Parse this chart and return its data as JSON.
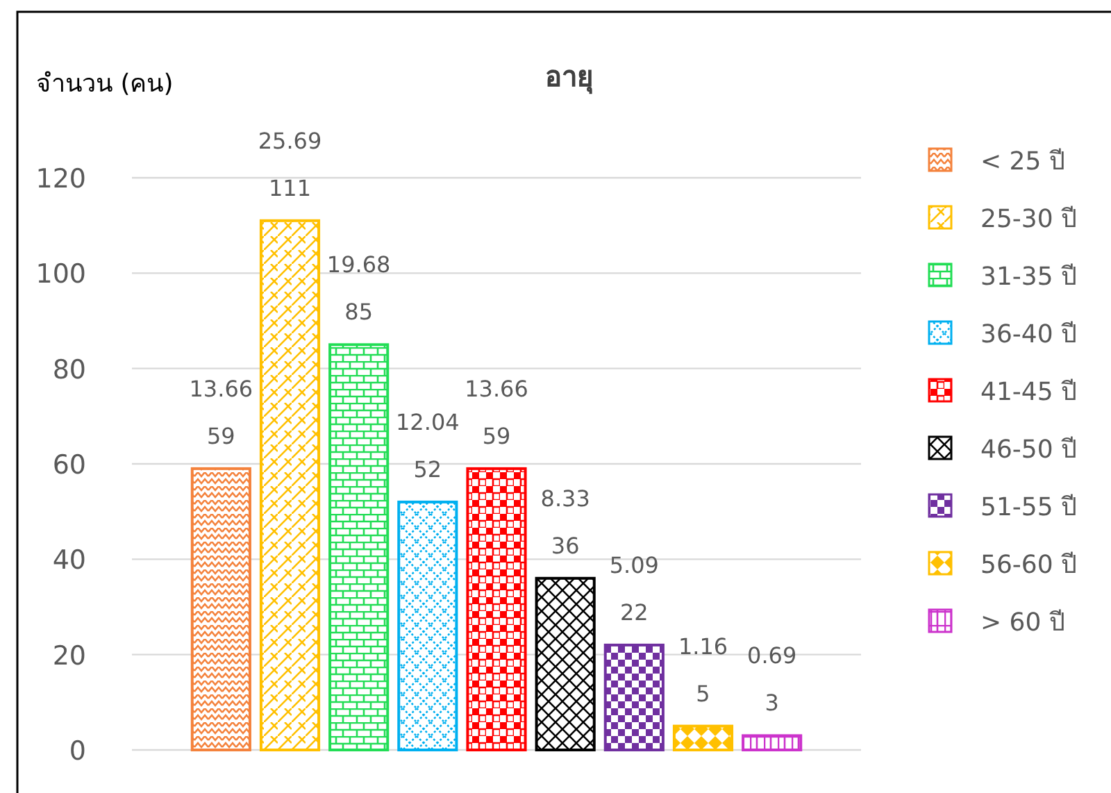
{
  "chart_data": {
    "type": "bar",
    "title": "อายุ",
    "ylabel": "จำนวน (คน)",
    "categories": [
      null
    ],
    "series": [
      {
        "name": "< 25 ปี",
        "color": "#f4823c",
        "values": [
          59
        ]
      },
      {
        "name": "25-30 ปี",
        "color": "#ffc000",
        "values": [
          111
        ]
      },
      {
        "name": "31-35 ปี",
        "color": "#22dd55",
        "values": [
          85
        ]
      },
      {
        "name": "36-40 ปี",
        "color": "#00b0f0",
        "values": [
          52
        ]
      },
      {
        "name": "41-45 ปี",
        "color": "#ff0000",
        "values": [
          59
        ]
      },
      {
        "name": "46-50 ปี",
        "color": "#000000",
        "values": [
          36
        ]
      },
      {
        "name": "51-55 ปี",
        "color": "#7030a0",
        "values": [
          22
        ]
      },
      {
        "name": "56-60 ปี",
        "color": "#ffc000",
        "values": [
          5
        ]
      },
      {
        "name": "> 60 ปี",
        "color": "#cc33cc",
        "values": [
          3
        ]
      }
    ],
    "annotations": [
      "13.66",
      "25.69",
      "19.68",
      "12.04",
      "13.66",
      "8.33",
      "5.09",
      "1.16",
      "0.69"
    ],
    "ylim": [
      0,
      120
    ],
    "yticks": [
      0,
      20,
      40,
      60,
      80,
      100,
      120
    ],
    "grid": "y",
    "legend": "right",
    "data_labels": true
  }
}
